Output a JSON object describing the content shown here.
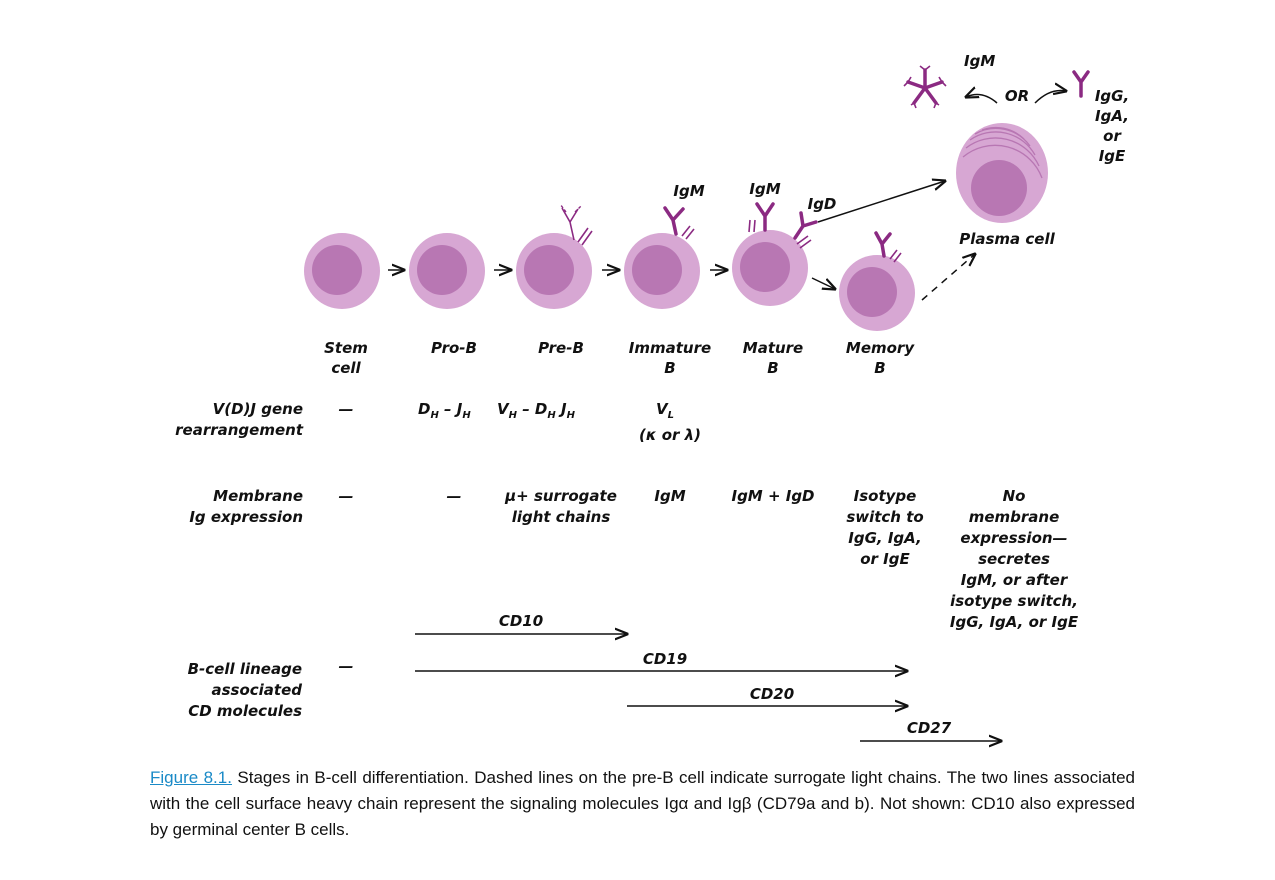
{
  "stages": [
    {
      "line1": "Stem",
      "line2": "cell"
    },
    {
      "line1": "Pro-B",
      "line2": ""
    },
    {
      "line1": "Pre-B",
      "line2": ""
    },
    {
      "line1": "Immature",
      "line2": "B"
    },
    {
      "line1": "Mature",
      "line2": "B"
    },
    {
      "line1": "Memory",
      "line2": "B"
    }
  ],
  "cell_labels": {
    "plasma_cell": "Plasma cell",
    "igm_immature": "IgM",
    "igm_mature": "IgM",
    "igd_mature": "IgD",
    "igm_secreted": "IgM",
    "or": "OR",
    "igg_line1": "IgG,",
    "igg_line2": "IgA,",
    "igg_line3": "or",
    "igg_line4": "IgE"
  },
  "rows": {
    "vdj": {
      "label1": "V(D)J gene",
      "label2": "rearrangement",
      "stem": "—",
      "prob_main": "D",
      "prob_sub1": "H",
      "prob_mid": " – J",
      "prob_sub2": "H",
      "preb_a": "V",
      "preb_sub_a": "H",
      "preb_b": " – D",
      "preb_sub_b": "H",
      "preb_c": " J",
      "preb_sub_c": "H",
      "immature_main": "V",
      "immature_sub": "L",
      "immature_line2": "(κ or λ)"
    },
    "membrane": {
      "label1": "Membrane",
      "label2": "Ig expression",
      "stem": "—",
      "prob": "—",
      "preb_line1": "μ+ surrogate",
      "preb_line2": "light chains",
      "immature": "IgM",
      "mature": "IgM + IgD",
      "memory_lines": [
        "Isotype",
        "switch to",
        "IgG, IgA,",
        "or IgE"
      ],
      "plasma_lines": [
        "No",
        "membrane",
        "expression—",
        "secretes",
        "IgM, or after",
        "isotype switch,",
        "IgG, IgA, or IgE"
      ]
    },
    "cd": {
      "label1": "B-cell lineage",
      "label2": "associated",
      "label3": "CD molecules",
      "stem": "—",
      "markers": [
        "CD10",
        "CD19",
        "CD20",
        "CD27"
      ]
    }
  },
  "caption": {
    "figure_ref": "Figure 8.1.",
    "text": " Stages in B-cell differentiation. Dashed lines on the pre-B cell indicate surrogate light chains. The two lines associated with the cell surface heavy chain represent the signaling molecules Igα and Igβ (CD79a and b). Not shown: CD10 also expressed by germinal center B cells."
  },
  "colors": {
    "cell_outer": "#d7a7d3",
    "cell_inner": "#b877b3",
    "antibody": "#8b2a82",
    "link": "#1a8ac7"
  }
}
